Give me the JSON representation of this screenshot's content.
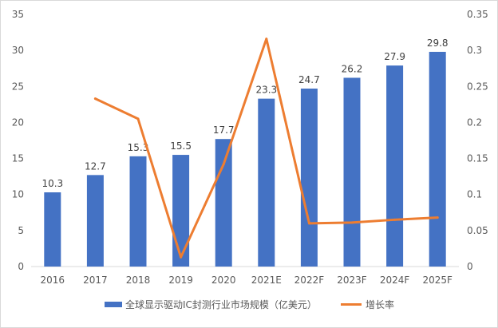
{
  "chart_data": {
    "type": "bar",
    "categories": [
      "2016",
      "2017",
      "2018",
      "2019",
      "2020",
      "2021E",
      "2022F",
      "2023F",
      "2024F",
      "2025F"
    ],
    "series": [
      {
        "name": "全球显示驱动IC封测行业市场规模（亿美元）",
        "type": "bar",
        "axis": "left",
        "color": "#4472C4",
        "values": [
          10.3,
          12.7,
          15.3,
          15.5,
          17.7,
          23.3,
          24.7,
          26.2,
          27.9,
          29.8
        ],
        "labels": [
          "10.3",
          "12.7",
          "15.3",
          "15.5",
          "17.7",
          "23.3",
          "24.7",
          "26.2",
          "27.9",
          "29.8"
        ]
      },
      {
        "name": "增长率",
        "type": "line",
        "axis": "right",
        "color": "#ED7D31",
        "values": [
          null,
          0.233,
          0.205,
          0.013,
          0.142,
          0.316,
          0.06,
          0.061,
          0.065,
          0.068
        ]
      }
    ],
    "y_left": {
      "min": 0,
      "max": 35,
      "ticks": [
        "0",
        "5",
        "10",
        "15",
        "20",
        "25",
        "30",
        "35"
      ]
    },
    "y_right": {
      "min": 0,
      "max": 0.35,
      "ticks": [
        "0",
        "0.05",
        "0.1",
        "0.15",
        "0.2",
        "0.25",
        "0.3",
        "0.35"
      ]
    },
    "grid": false,
    "legend": "bottom"
  }
}
